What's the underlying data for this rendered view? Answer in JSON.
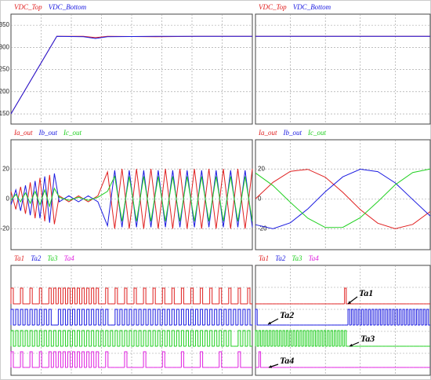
{
  "chart_data": [
    {
      "type": "line",
      "x": [
        0,
        0.19,
        0.3,
        0.35,
        0.4,
        0.6,
        0.8,
        1
      ],
      "xlim": [
        0,
        1
      ],
      "ylim": [
        127,
        375
      ],
      "yticks": [
        150,
        200,
        250,
        300,
        350
      ],
      "grid": true,
      "series": [
        {
          "name": "VDC_Top",
          "color": "#e02020",
          "values": [
            150,
            325,
            325,
            322,
            325,
            324,
            325,
            325
          ]
        },
        {
          "name": "VDC_Bottom",
          "color": "#1a1ae0",
          "values": [
            150,
            325,
            324,
            320,
            324,
            325,
            325,
            325
          ]
        }
      ]
    },
    {
      "type": "line",
      "x": [
        0,
        1
      ],
      "xlim": [
        0,
        1
      ],
      "ylim": [
        127,
        375
      ],
      "yticks": [
        150,
        200,
        250,
        300,
        350
      ],
      "show_tick_labels": false,
      "grid": true,
      "series": [
        {
          "name": "VDC_Top",
          "color": "#e02020",
          "values": [
            325,
            325
          ]
        },
        {
          "name": "VDC_Bottom",
          "color": "#1a1ae0",
          "values": [
            325,
            325
          ]
        }
      ]
    },
    {
      "type": "line",
      "x": [
        0,
        0.02,
        0.04,
        0.06,
        0.08,
        0.1,
        0.12,
        0.14,
        0.16,
        0.18,
        0.2,
        0.24,
        0.28,
        0.32,
        0.36,
        0.4,
        0.43,
        0.46,
        0.49,
        0.52,
        0.55,
        0.58,
        0.61,
        0.64,
        0.67,
        0.7,
        0.73,
        0.76,
        0.79,
        0.82,
        0.85,
        0.88,
        0.91,
        0.94,
        0.97,
        1
      ],
      "xlim": [
        0,
        1
      ],
      "ylim": [
        -34,
        39.5
      ],
      "yticks": [
        -20,
        0,
        20
      ],
      "grid": true,
      "series": [
        {
          "name": "Ia_out",
          "color": "#e02020",
          "values": [
            5,
            -7,
            8,
            -10,
            11,
            -13,
            14,
            -15,
            16,
            -17,
            2,
            -2,
            2,
            -2,
            2,
            18,
            -20,
            20,
            -20,
            20,
            -20,
            20,
            -20,
            20,
            -20,
            20,
            -20,
            20,
            -20,
            20,
            -20,
            20,
            -20,
            20,
            -20,
            20
          ]
        },
        {
          "name": "Ib_out",
          "color": "#1a1ae0",
          "values": [
            -4,
            6,
            -8,
            9,
            -11,
            12,
            -13,
            15,
            -16,
            17,
            -2,
            2,
            -2,
            2,
            -2,
            -18,
            19,
            -19,
            19,
            -19,
            19,
            -19,
            19,
            -19,
            19,
            -19,
            19,
            -19,
            19,
            -19,
            19,
            -19,
            19,
            -19,
            19,
            -19
          ]
        },
        {
          "name": "Ic_out",
          "color": "#20d020",
          "values": [
            -1,
            3,
            -2,
            4,
            -3,
            5,
            -4,
            6,
            -5,
            7,
            1,
            -1,
            1,
            -1,
            1,
            5,
            15,
            -15,
            15,
            -15,
            15,
            -15,
            15,
            -15,
            15,
            -15,
            15,
            -15,
            15,
            -15,
            15,
            -15,
            15,
            -15,
            15,
            -15
          ]
        }
      ]
    },
    {
      "type": "line",
      "x": [
        0,
        0.1,
        0.2,
        0.3,
        0.4,
        0.5,
        0.6,
        0.7,
        0.8,
        0.9,
        1
      ],
      "xlim": [
        0,
        1
      ],
      "ylim": [
        -34,
        39.5
      ],
      "yticks": [
        -20,
        0,
        20
      ],
      "grid": true,
      "series": [
        {
          "name": "Ia_out",
          "color": "#e02020",
          "values": [
            0,
            11,
            18.4,
            19.7,
            14.4,
            4.3,
            -7.2,
            -16.3,
            -20,
            -17.1,
            -8.5
          ]
        },
        {
          "name": "Ib_out",
          "color": "#1a1ae0",
          "values": [
            -17.3,
            -20,
            -16,
            -6.7,
            4.8,
            14.7,
            19.8,
            18.2,
            10.6,
            -0.5,
            -11.5
          ]
        },
        {
          "name": "Ic_out",
          "color": "#20d020",
          "values": [
            17.3,
            8.9,
            -2.4,
            -13,
            -19.2,
            -19.1,
            -12.6,
            -1.9,
            9.4,
            17.6,
            19.9
          ]
        }
      ]
    },
    {
      "type": "pulse",
      "x": [
        0,
        0.02,
        0.04,
        0.06,
        0.08,
        0.1,
        0.12,
        0.14,
        0.16,
        0.18,
        0.2,
        0.22,
        0.24,
        0.26,
        0.28,
        0.3,
        0.32,
        0.34,
        0.36,
        0.38,
        0.4,
        0.42,
        0.44,
        0.46,
        0.48,
        0.5,
        0.52,
        0.54,
        0.56,
        0.58,
        0.6,
        0.62,
        0.64,
        0.66,
        0.68,
        0.7,
        0.72,
        0.74,
        0.76,
        0.78,
        0.8,
        0.82,
        0.84,
        0.86,
        0.88,
        0.9,
        0.92,
        0.94,
        0.96,
        0.98,
        1
      ],
      "xlim": [
        0,
        1.02
      ],
      "grid": true,
      "series": [
        {
          "name": "Ta1",
          "color": "#e02020",
          "values": [
            1,
            0,
            1,
            0,
            1,
            0,
            1,
            0,
            1,
            1,
            1,
            1,
            1,
            1,
            1,
            1,
            1,
            1,
            1,
            0,
            1,
            0,
            1,
            0,
            1,
            0,
            1,
            0,
            1,
            0,
            1,
            0,
            1,
            0,
            1,
            0,
            1,
            0,
            1,
            0,
            1,
            0,
            1,
            0,
            1,
            0,
            1,
            0,
            1,
            0,
            1
          ]
        },
        {
          "name": "Ta2",
          "color": "#1a1ae0",
          "values": [
            1,
            1,
            1,
            1,
            1,
            1,
            1,
            1,
            1,
            0,
            1,
            1,
            1,
            1,
            1,
            1,
            1,
            1,
            1,
            1,
            1,
            0,
            1,
            1,
            1,
            1,
            1,
            1,
            1,
            1,
            1,
            1,
            1,
            1,
            1,
            1,
            1,
            1,
            1,
            1,
            1,
            1,
            1,
            1,
            1,
            1,
            1,
            1,
            1,
            1,
            1
          ]
        },
        {
          "name": "Ta3",
          "color": "#20d020",
          "values": [
            1,
            1,
            1,
            1,
            1,
            1,
            1,
            1,
            1,
            1,
            1,
            1,
            1,
            1,
            1,
            1,
            1,
            1,
            1,
            1,
            1,
            1,
            1,
            1,
            1,
            1,
            1,
            1,
            1,
            1,
            1,
            1,
            1,
            1,
            1,
            1,
            1,
            1,
            1,
            1,
            1,
            1,
            1,
            1,
            1,
            1,
            1,
            0,
            1,
            1,
            1
          ]
        },
        {
          "name": "Ta4",
          "color": "#e020e0",
          "values": [
            1,
            0,
            1,
            0,
            1,
            0,
            1,
            0,
            1,
            1,
            1,
            1,
            1,
            1,
            1,
            1,
            1,
            1,
            1,
            0,
            1,
            0,
            0,
            0,
            1,
            0,
            0,
            0,
            1,
            0,
            0,
            0,
            1,
            0,
            0,
            0,
            1,
            0,
            0,
            0,
            1,
            0,
            0,
            0,
            1,
            0,
            0,
            0,
            1,
            0,
            0
          ]
        }
      ]
    },
    {
      "type": "pulse",
      "x": [
        0,
        0.02,
        0.04,
        0.06,
        0.08,
        0.1,
        0.12,
        0.14,
        0.16,
        0.18,
        0.2,
        0.22,
        0.24,
        0.26,
        0.28,
        0.3,
        0.32,
        0.34,
        0.36,
        0.38,
        0.4,
        0.42,
        0.44,
        0.46,
        0.48,
        0.5,
        0.52,
        0.54,
        0.56,
        0.58,
        0.6,
        0.62,
        0.64,
        0.66,
        0.68,
        0.7,
        0.72,
        0.74,
        0.76,
        0.78,
        0.8,
        0.82,
        0.84,
        0.86,
        0.88,
        0.9,
        0.92,
        0.94,
        0.96,
        0.98,
        1
      ],
      "xlim": [
        0,
        1.02
      ],
      "grid": true,
      "annotations": [
        "Ta1",
        "Ta2",
        "Ta3",
        "Ta4"
      ],
      "series": [
        {
          "name": "Ta1",
          "color": "#e02020",
          "values": [
            0,
            0,
            0,
            0,
            0,
            0,
            0,
            0,
            0,
            0,
            0,
            0,
            0,
            0,
            0,
            0,
            0,
            0,
            0,
            0,
            0,
            0,
            0,
            0,
            0,
            0,
            1,
            0,
            0,
            0,
            0,
            0,
            0,
            0,
            0,
            0,
            0,
            0,
            0,
            0,
            0,
            0,
            0,
            0,
            0,
            0,
            0,
            0,
            0,
            0,
            0
          ]
        },
        {
          "name": "Ta2",
          "color": "#1a1ae0",
          "values": [
            1,
            0,
            0,
            0,
            0,
            0,
            0,
            0,
            0,
            0,
            0,
            0,
            0,
            0,
            0,
            0,
            0,
            0,
            0,
            0,
            0,
            0,
            0,
            0,
            0,
            0,
            0,
            1,
            1,
            1,
            1,
            1,
            1,
            1,
            1,
            1,
            1,
            1,
            1,
            1,
            1,
            1,
            1,
            1,
            1,
            1,
            1,
            1,
            1,
            1,
            1
          ]
        },
        {
          "name": "Ta3",
          "color": "#20d020",
          "values": [
            1,
            1,
            1,
            1,
            1,
            1,
            1,
            1,
            1,
            1,
            1,
            1,
            1,
            1,
            1,
            1,
            1,
            1,
            1,
            1,
            1,
            1,
            1,
            1,
            1,
            1,
            1,
            0,
            0,
            0,
            0,
            0,
            0,
            0,
            0,
            0,
            0,
            0,
            0,
            0,
            0,
            0,
            0,
            0,
            0,
            0,
            0,
            0,
            0,
            0,
            0
          ]
        },
        {
          "name": "Ta4",
          "color": "#e020e0",
          "values": [
            0,
            1,
            0,
            0,
            0,
            0,
            0,
            0,
            0,
            0,
            0,
            0,
            0,
            0,
            0,
            0,
            0,
            0,
            0,
            0,
            0,
            0,
            0,
            0,
            0,
            0,
            0,
            0,
            0,
            0,
            0,
            0,
            0,
            0,
            0,
            0,
            0,
            0,
            0,
            0,
            0,
            0,
            0,
            0,
            0,
            0,
            0,
            0,
            0,
            0,
            0
          ]
        }
      ]
    }
  ]
}
